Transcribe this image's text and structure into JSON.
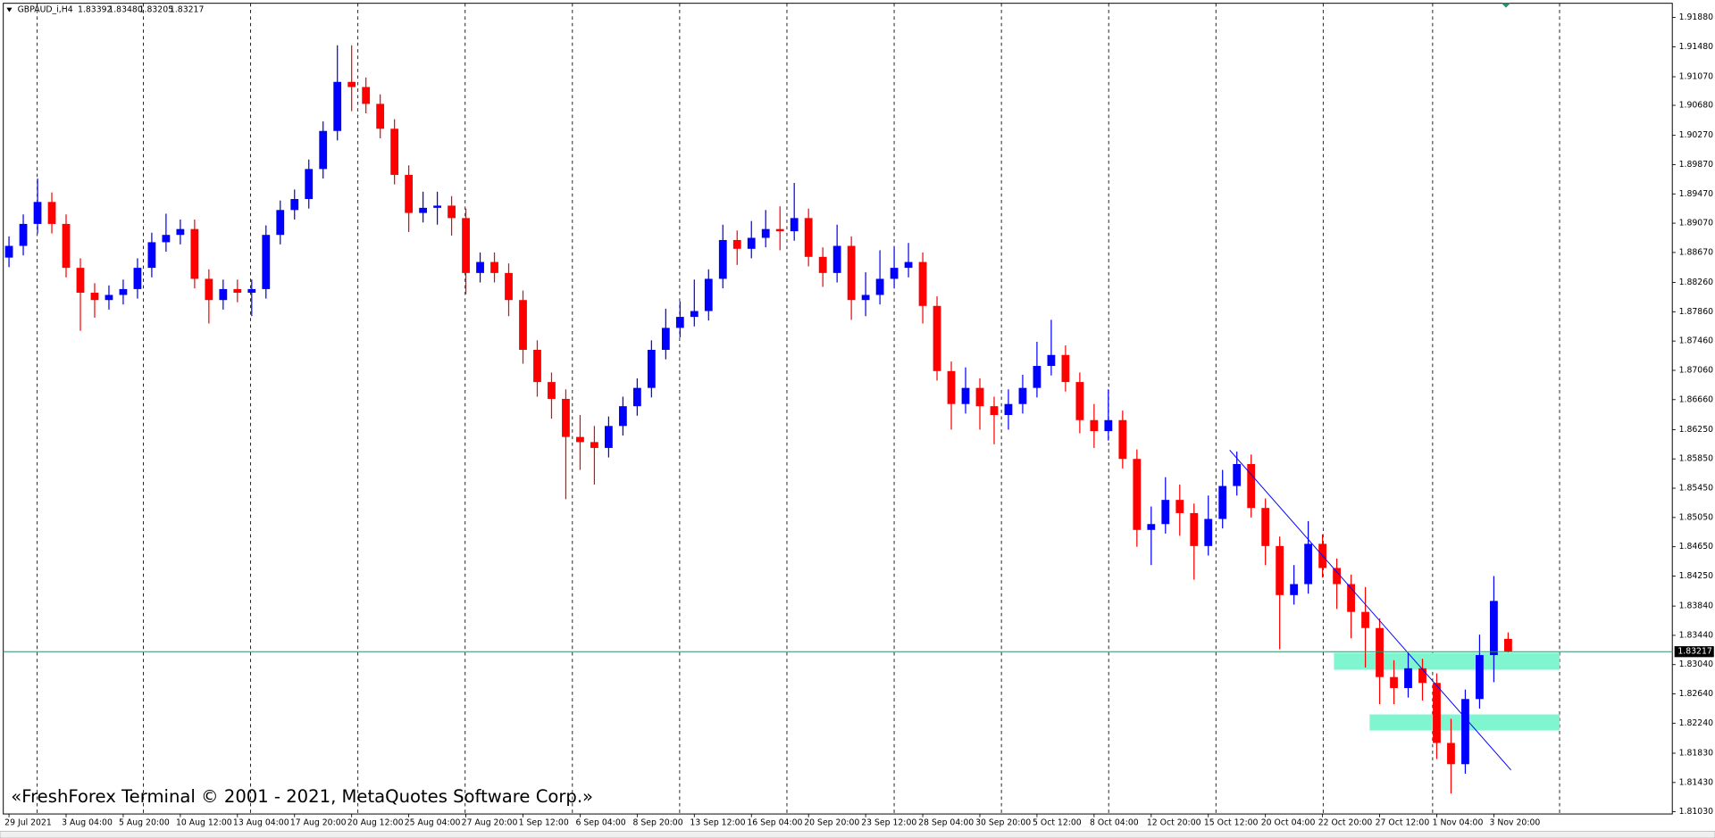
{
  "chart_data": {
    "type": "candlestick",
    "symbol": "GBPAUD_i,H4",
    "ohlc_header": [
      {
        "value": 1.83392,
        "label": "1.83392"
      },
      {
        "value": 1.8348,
        "label": "1.83480"
      },
      {
        "value": 1.83205,
        "label": "1.83205"
      },
      {
        "value": 1.83217,
        "label": "1.83217"
      }
    ],
    "up_color": "#0000ff",
    "down_color": "#ff0000",
    "open": [
      1.886,
      1.8876,
      1.8906,
      1.8936,
      1.8906,
      1.8846,
      1.8812,
      1.8802,
      1.8809,
      1.8817,
      1.8846,
      1.8881,
      1.8891,
      1.8899,
      1.8831,
      1.8802,
      1.8817,
      1.8812,
      1.8817,
      1.8891,
      1.8925,
      1.894,
      1.8981,
      1.9033,
      1.91,
      1.9093,
      1.907,
      1.9036,
      1.8973,
      1.8921,
      1.8928,
      1.8931,
      1.8914,
      1.8839,
      1.8854,
      1.8839,
      1.8802,
      1.8734,
      1.869,
      1.8667,
      1.8615,
      1.8608,
      1.86,
      1.863,
      1.8657,
      1.8682,
      1.8734,
      1.8764,
      1.8779,
      1.8787,
      1.8831,
      1.8884,
      1.8872,
      1.8887,
      1.8899,
      1.8896,
      1.8914,
      1.8861,
      1.8839,
      1.8876,
      1.8802,
      1.8809,
      1.8831,
      1.8846,
      1.8854,
      1.8794,
      1.8705,
      1.866,
      1.8682,
      1.8657,
      1.8645,
      1.866,
      1.8682,
      1.8712,
      1.8727,
      1.869,
      1.8638,
      1.8623,
      1.8638,
      1.8585,
      1.8488,
      1.8496,
      1.8529,
      1.8511,
      1.8466,
      1.8503,
      1.8548,
      1.8578,
      1.8518,
      1.8466,
      1.8399,
      1.8414,
      1.8469,
      1.8436,
      1.8414,
      1.8376,
      1.8354,
      1.8287,
      1.8272,
      1.8299,
      1.8279,
      1.8197,
      1.8168,
      1.8257,
      1.8317,
      1.83392
    ],
    "high": [
      1.8889,
      1.8919,
      1.8968,
      1.8949,
      1.8919,
      1.8859,
      1.8825,
      1.8822,
      1.883,
      1.8859,
      1.8894,
      1.892,
      1.8912,
      1.8912,
      1.8844,
      1.883,
      1.883,
      1.883,
      1.8904,
      1.8938,
      1.8953,
      1.8994,
      1.9046,
      1.915,
      1.915,
      1.9106,
      1.9083,
      1.9049,
      1.8986,
      1.895,
      1.895,
      1.8944,
      1.8927,
      1.8867,
      1.8867,
      1.8852,
      1.8815,
      1.8747,
      1.8703,
      1.868,
      1.8645,
      1.863,
      1.8643,
      1.867,
      1.8695,
      1.8747,
      1.879,
      1.88,
      1.883,
      1.8844,
      1.8905,
      1.8897,
      1.891,
      1.8925,
      1.893,
      1.8962,
      1.8927,
      1.8874,
      1.8905,
      1.8889,
      1.884,
      1.887,
      1.8875,
      1.888,
      1.8867,
      1.8807,
      1.8718,
      1.871,
      1.8695,
      1.867,
      1.868,
      1.87,
      1.8745,
      1.8775,
      1.874,
      1.8703,
      1.866,
      1.868,
      1.8651,
      1.8598,
      1.852,
      1.856,
      1.855,
      1.8524,
      1.8535,
      1.857,
      1.8595,
      1.8591,
      1.8531,
      1.8479,
      1.844,
      1.85,
      1.8482,
      1.8449,
      1.8427,
      1.841,
      1.8367,
      1.831,
      1.832,
      1.8312,
      1.8292,
      1.823,
      1.827,
      1.8345,
      1.8425,
      1.8348
    ],
    "low": [
      1.8847,
      1.8863,
      1.8893,
      1.8893,
      1.8833,
      1.876,
      1.8778,
      1.8789,
      1.8796,
      1.8804,
      1.8833,
      1.8868,
      1.8878,
      1.8818,
      1.877,
      1.8789,
      1.8799,
      1.878,
      1.8804,
      1.8878,
      1.8912,
      1.8927,
      1.8968,
      1.902,
      1.906,
      1.9057,
      1.9023,
      1.896,
      1.8895,
      1.8908,
      1.8905,
      1.889,
      1.881,
      1.8826,
      1.8826,
      1.878,
      1.8715,
      1.867,
      1.864,
      1.853,
      1.857,
      1.855,
      1.8587,
      1.8617,
      1.8644,
      1.8669,
      1.8721,
      1.8751,
      1.8766,
      1.8774,
      1.8818,
      1.885,
      1.8859,
      1.8874,
      1.887,
      1.8883,
      1.8848,
      1.882,
      1.8826,
      1.8775,
      1.878,
      1.8796,
      1.8818,
      1.8833,
      1.877,
      1.8692,
      1.8625,
      1.8647,
      1.8625,
      1.8605,
      1.8625,
      1.8647,
      1.8669,
      1.8699,
      1.8677,
      1.862,
      1.86,
      1.861,
      1.8572,
      1.8465,
      1.844,
      1.8483,
      1.848,
      1.842,
      1.8453,
      1.849,
      1.8535,
      1.8505,
      1.844,
      1.8325,
      1.8386,
      1.8401,
      1.8423,
      1.838,
      1.834,
      1.83,
      1.825,
      1.825,
      1.8259,
      1.8255,
      1.8175,
      1.8128,
      1.8155,
      1.8244,
      1.828,
      1.83205
    ],
    "close": [
      1.8876,
      1.8906,
      1.8936,
      1.8906,
      1.8846,
      1.8812,
      1.8802,
      1.8809,
      1.8817,
      1.8846,
      1.8881,
      1.8891,
      1.8899,
      1.8831,
      1.8802,
      1.8817,
      1.8812,
      1.8817,
      1.8891,
      1.8925,
      1.894,
      1.8981,
      1.9033,
      1.91,
      1.9093,
      1.907,
      1.9036,
      1.8973,
      1.8921,
      1.8928,
      1.8931,
      1.8914,
      1.8839,
      1.8854,
      1.8839,
      1.8802,
      1.8734,
      1.869,
      1.8667,
      1.8615,
      1.8608,
      1.86,
      1.863,
      1.8657,
      1.8682,
      1.8734,
      1.8764,
      1.8779,
      1.8787,
      1.8831,
      1.8884,
      1.8872,
      1.8887,
      1.8899,
      1.8896,
      1.8914,
      1.8861,
      1.8839,
      1.8876,
      1.8802,
      1.8809,
      1.8831,
      1.8846,
      1.8854,
      1.8794,
      1.8705,
      1.866,
      1.8682,
      1.8657,
      1.8645,
      1.866,
      1.8682,
      1.8712,
      1.8727,
      1.869,
      1.8638,
      1.8623,
      1.8638,
      1.8585,
      1.8488,
      1.8496,
      1.8529,
      1.8511,
      1.8466,
      1.8503,
      1.8548,
      1.8578,
      1.8518,
      1.8466,
      1.8399,
      1.8414,
      1.8469,
      1.8436,
      1.8414,
      1.8376,
      1.8354,
      1.8287,
      1.8272,
      1.8299,
      1.8279,
      1.8197,
      1.8168,
      1.8257,
      1.8317,
      1.8391,
      1.83217
    ],
    "xlim": [
      -0.4,
      116.5
    ],
    "xticks": [
      {
        "value": 0,
        "label": "29 Jul 2021"
      },
      {
        "value": 4,
        "label": "3 Aug 04:00"
      },
      {
        "value": 8,
        "label": "5 Aug 20:00"
      },
      {
        "value": 12,
        "label": "10 Aug 12:00"
      },
      {
        "value": 16,
        "label": "13 Aug 04:00"
      },
      {
        "value": 20,
        "label": "17 Aug 20:00"
      },
      {
        "value": 24,
        "label": "20 Aug 12:00"
      },
      {
        "value": 28,
        "label": "25 Aug 04:00"
      },
      {
        "value": 32,
        "label": "27 Aug 20:00"
      },
      {
        "value": 36,
        "label": "1 Sep 12:00"
      },
      {
        "value": 40,
        "label": "6 Sep 04:00"
      },
      {
        "value": 44,
        "label": "8 Sep 20:00"
      },
      {
        "value": 48,
        "label": "13 Sep 12:00"
      },
      {
        "value": 52,
        "label": "16 Sep 04:00"
      },
      {
        "value": 56,
        "label": "20 Sep 20:00"
      },
      {
        "value": 60,
        "label": "23 Sep 12:00"
      },
      {
        "value": 64,
        "label": "28 Sep 04:00"
      },
      {
        "value": 68,
        "label": "30 Sep 20:00"
      },
      {
        "value": 72,
        "label": "5 Oct 12:00"
      },
      {
        "value": 76,
        "label": "8 Oct 04:00"
      },
      {
        "value": 80,
        "label": "12 Oct 20:00"
      },
      {
        "value": 84,
        "label": "15 Oct 12:00"
      },
      {
        "value": 88,
        "label": "20 Oct 04:00"
      },
      {
        "value": 92,
        "label": "22 Oct 20:00"
      },
      {
        "value": 96,
        "label": "27 Oct 12:00"
      },
      {
        "value": 100,
        "label": "1 Nov 04:00"
      },
      {
        "value": 104,
        "label": "3 Nov 20:00"
      }
    ],
    "ylim": [
      1.81,
      1.92074
    ],
    "yticks": [
      {
        "value": 1.9188,
        "label": "1.91880"
      },
      {
        "value": 1.9148,
        "label": "1.91480"
      },
      {
        "value": 1.9107,
        "label": "1.91070"
      },
      {
        "value": 1.9068,
        "label": "1.90680"
      },
      {
        "value": 1.9027,
        "label": "1.90270"
      },
      {
        "value": 1.8987,
        "label": "1.89870"
      },
      {
        "value": 1.8947,
        "label": "1.89470"
      },
      {
        "value": 1.8907,
        "label": "1.89070"
      },
      {
        "value": 1.8867,
        "label": "1.88670"
      },
      {
        "value": 1.8826,
        "label": "1.88260"
      },
      {
        "value": 1.8786,
        "label": "1.87860"
      },
      {
        "value": 1.8746,
        "label": "1.87460"
      },
      {
        "value": 1.8706,
        "label": "1.87060"
      },
      {
        "value": 1.8666,
        "label": "1.86660"
      },
      {
        "value": 1.8625,
        "label": "1.86250"
      },
      {
        "value": 1.8585,
        "label": "1.85850"
      },
      {
        "value": 1.8545,
        "label": "1.85450"
      },
      {
        "value": 1.8505,
        "label": "1.85050"
      },
      {
        "value": 1.8465,
        "label": "1.84650"
      },
      {
        "value": 1.8425,
        "label": "1.84250"
      },
      {
        "value": 1.8384,
        "label": "1.83840"
      },
      {
        "value": 1.8344,
        "label": "1.83440"
      },
      {
        "value": 1.8304,
        "label": "1.83040"
      },
      {
        "value": 1.8264,
        "label": "1.82640"
      },
      {
        "value": 1.8224,
        "label": "1.82240"
      },
      {
        "value": 1.8183,
        "label": "1.81830"
      },
      {
        "value": 1.8143,
        "label": "1.81430"
      },
      {
        "value": 1.8103,
        "label": "1.81030"
      }
    ],
    "bid": 1.83217,
    "bid_color": "#2e8f6a",
    "trendline": {
      "x": [
        85.5,
        105.2
      ],
      "y": [
        1.8597,
        1.816
      ],
      "color": "#0000ff"
    },
    "zones": [
      {
        "x": [
          92.8,
          108.6
        ],
        "y": [
          1.8297,
          1.832
        ]
      },
      {
        "x": [
          95.3,
          108.6
        ],
        "y": [
          1.8214,
          1.8236
        ]
      }
    ],
    "zone_color": "#7ff5d0",
    "copyright": "«FreshForex Terminal © 2001 - 2021, MetaQuotes Software Corp.»"
  }
}
